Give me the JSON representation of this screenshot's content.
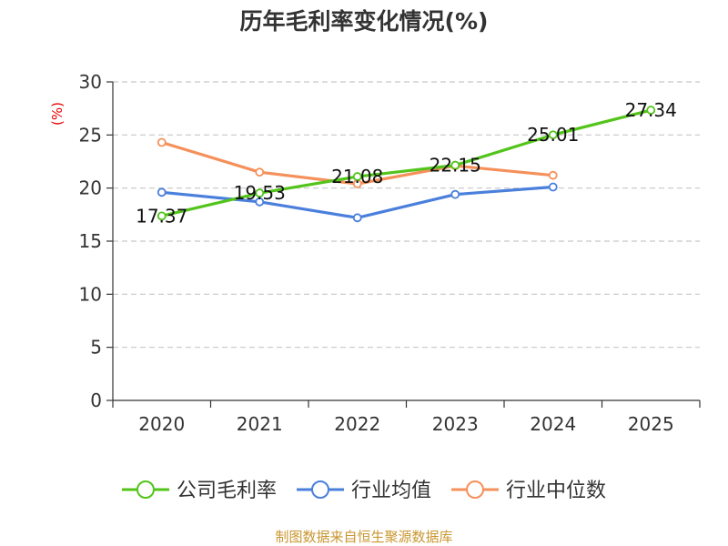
{
  "chart_data": {
    "type": "line",
    "title": "历年毛利率变化情况(%)",
    "ylabel": "(%)",
    "xlabel": "",
    "categories": [
      "2020",
      "2021",
      "2022",
      "2023",
      "2024",
      "2025"
    ],
    "ylim": [
      0,
      30
    ],
    "yticks": [
      0,
      5,
      10,
      15,
      20,
      25,
      30
    ],
    "grid": true,
    "legend_position": "bottom",
    "series": [
      {
        "name": "公司毛利率",
        "color": "#52c41a",
        "values": [
          17.37,
          19.53,
          21.08,
          22.15,
          25.01,
          27.34
        ],
        "data_labels": [
          "17.37",
          "19.53",
          "21.08",
          "22.15",
          "25.01",
          "27.34"
        ]
      },
      {
        "name": "行业均值",
        "color": "#4a7fdc",
        "values": [
          19.6,
          18.7,
          17.2,
          19.4,
          20.1,
          null
        ]
      },
      {
        "name": "行业中位数",
        "color": "#f5905a",
        "values": [
          24.3,
          21.5,
          20.4,
          22.1,
          21.2,
          null
        ]
      }
    ]
  },
  "footer": {
    "source": "制图数据来自恒生聚源数据库"
  }
}
